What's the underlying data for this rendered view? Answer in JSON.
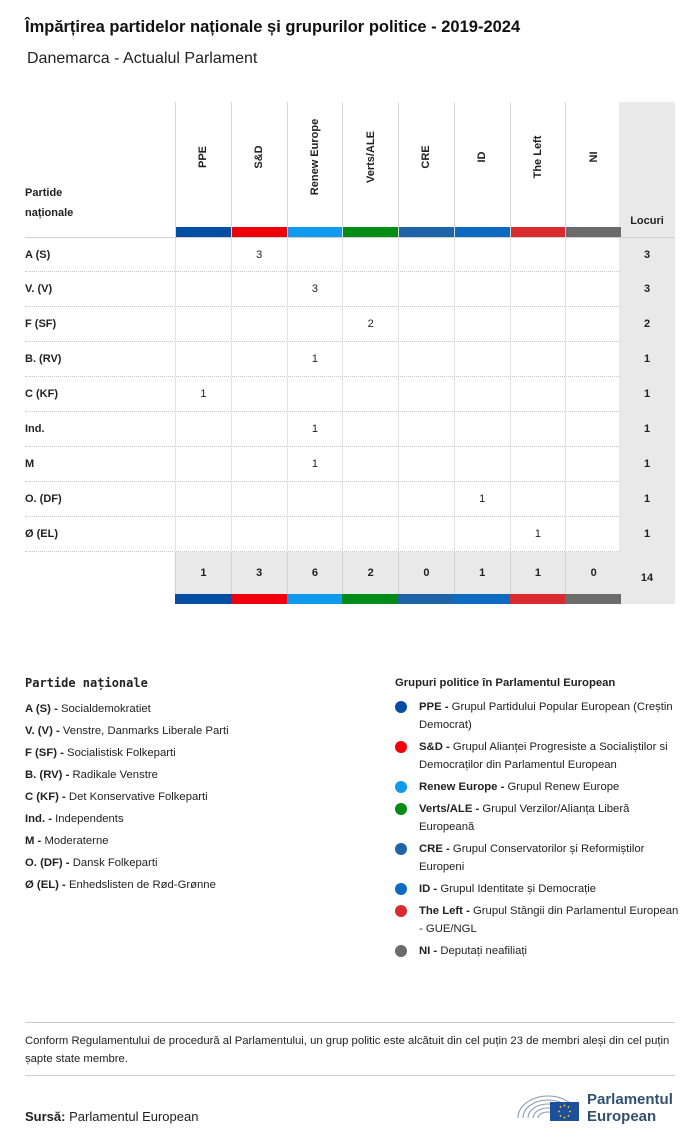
{
  "title": "Împărțirea partidelor naționale și grupurilor politice - 2019-2024",
  "subtitle": "Danemarca - Actualul Parlament",
  "chart_data": {
    "type": "table",
    "row_header_line1": "Partide",
    "row_header_line2": "naționale",
    "seats_header": "Locuri",
    "groups": [
      {
        "code": "PPE",
        "color": "#034ea2"
      },
      {
        "code": "S&D",
        "color": "#f0000a"
      },
      {
        "code": "Renew Europe",
        "color": "#0f9aed"
      },
      {
        "code": "Verts/ALE",
        "color": "#008c17"
      },
      {
        "code": "CRE",
        "color": "#1f64a8"
      },
      {
        "code": "ID",
        "color": "#0c6ac2"
      },
      {
        "code": "The Left",
        "color": "#da2a2f"
      },
      {
        "code": "NI",
        "color": "#6b6b6b"
      }
    ],
    "rows": [
      {
        "party": "A (S)",
        "values": [
          "",
          "3",
          "",
          "",
          "",
          "",
          "",
          ""
        ],
        "seats": "3"
      },
      {
        "party": "V. (V)",
        "values": [
          "",
          "",
          "3",
          "",
          "",
          "",
          "",
          ""
        ],
        "seats": "3"
      },
      {
        "party": "F (SF)",
        "values": [
          "",
          "",
          "",
          "2",
          "",
          "",
          "",
          ""
        ],
        "seats": "2"
      },
      {
        "party": "B. (RV)",
        "values": [
          "",
          "",
          "1",
          "",
          "",
          "",
          "",
          ""
        ],
        "seats": "1"
      },
      {
        "party": "C (KF)",
        "values": [
          "1",
          "",
          "",
          "",
          "",
          "",
          "",
          ""
        ],
        "seats": "1"
      },
      {
        "party": "Ind.",
        "values": [
          "",
          "",
          "1",
          "",
          "",
          "",
          "",
          ""
        ],
        "seats": "1"
      },
      {
        "party": "M",
        "values": [
          "",
          "",
          "1",
          "",
          "",
          "",
          "",
          ""
        ],
        "seats": "1"
      },
      {
        "party": "O. (DF)",
        "values": [
          "",
          "",
          "",
          "",
          "",
          "1",
          "",
          ""
        ],
        "seats": "1"
      },
      {
        "party": "Ø (EL)",
        "values": [
          "",
          "",
          "",
          "",
          "",
          "",
          "1",
          ""
        ],
        "seats": "1"
      }
    ],
    "totals": [
      "1",
      "3",
      "6",
      "2",
      "0",
      "1",
      "1",
      "0"
    ],
    "total_seats": "14"
  },
  "legend_parties": {
    "title": "Partide naționale",
    "items": [
      {
        "code": "A (S) -",
        "name": "Socialdemokratiet"
      },
      {
        "code": "V. (V) -",
        "name": "Venstre, Danmarks Liberale Parti"
      },
      {
        "code": "F (SF) -",
        "name": "Socialistisk Folkeparti"
      },
      {
        "code": "B. (RV) -",
        "name": "Radikale Venstre"
      },
      {
        "code": "C (KF) -",
        "name": "Det Konservative Folkeparti"
      },
      {
        "code": "Ind. -",
        "name": "Independents"
      },
      {
        "code": "M -",
        "name": "Moderaterne"
      },
      {
        "code": "O. (DF) -",
        "name": "Dansk Folkeparti"
      },
      {
        "code": "Ø (EL) -",
        "name": "Enhedslisten de Rød-Grønne"
      }
    ]
  },
  "legend_groups": {
    "title": "Grupuri politice în Parlamentul European",
    "items": [
      {
        "code": "PPE -",
        "name": "Grupul Partidului Popular European (Creștin Democrat)",
        "color": "#034ea2"
      },
      {
        "code": "S&D -",
        "name": "Grupul Alianței Progresiste a Socialiștilor si Democraților din Parlamentul European",
        "color": "#f0000a"
      },
      {
        "code": "Renew Europe -",
        "name": "Grupul Renew Europe",
        "color": "#0f9aed"
      },
      {
        "code": "Verts/ALE -",
        "name": "Grupul Verzilor/Alianța Liberă Europeană",
        "color": "#008c17"
      },
      {
        "code": "CRE -",
        "name": "Grupul Conservatorilor și Reformiștilor Europeni",
        "color": "#1f64a8"
      },
      {
        "code": "ID -",
        "name": "Grupul Identitate și Democrație",
        "color": "#0c6ac2"
      },
      {
        "code": "The Left -",
        "name": "Grupul Stângii din Parlamentul European - GUE/NGL",
        "color": "#da2a2f"
      },
      {
        "code": "NI -",
        "name": "Deputați neafiliați",
        "color": "#6b6b6b"
      }
    ]
  },
  "note": "Conform Regulamentului de procedură al Parlamentului, un grup politic este alcătuit din cel puțin 23 de membri aleși din cel puțin șapte state membre.",
  "source": {
    "label": "Sursă:",
    "value": "Parlamentul European"
  },
  "logo": {
    "line1": "Parlamentul",
    "line2": "European"
  }
}
